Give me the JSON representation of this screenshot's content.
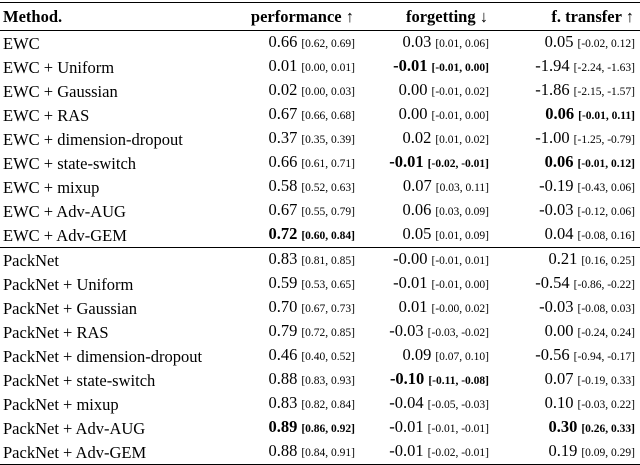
{
  "table": {
    "header": [
      "Method.",
      "performance ↑",
      "forgetting ↓",
      "f. transfer ↑"
    ],
    "groups": [
      [
        [
          "EWC",
          {
            "value": "0.66",
            "ci": "[0.62, 0.69]"
          },
          {
            "value": "0.03",
            "ci": "[0.01, 0.06]"
          },
          {
            "value": "0.05",
            "ci": "[-0.02, 0.12]"
          }
        ],
        [
          "EWC + Uniform",
          {
            "value": "0.01",
            "ci": "[0.00, 0.01]"
          },
          {
            "value": "-0.01",
            "ci": "[-0.01, 0.00]",
            "bold": true
          },
          {
            "value": "-1.94",
            "ci": "[-2.24, -1.63]"
          }
        ],
        [
          "EWC + Gaussian",
          {
            "value": "0.02",
            "ci": "[0.00, 0.03]"
          },
          {
            "value": "0.00",
            "ci": "[-0.01, 0.02]"
          },
          {
            "value": "-1.86",
            "ci": "[-2.15, -1.57]"
          }
        ],
        [
          "EWC + RAS",
          {
            "value": "0.67",
            "ci": "[0.66, 0.68]"
          },
          {
            "value": "0.00",
            "ci": "[-0.01, 0.00]"
          },
          {
            "value": "0.06",
            "ci": "[-0.01, 0.11]",
            "bold": true
          }
        ],
        [
          "EWC + dimension-dropout",
          {
            "value": "0.37",
            "ci": "[0.35, 0.39]"
          },
          {
            "value": "0.02",
            "ci": "[0.01, 0.02]"
          },
          {
            "value": "-1.00",
            "ci": "[-1.25, -0.79]"
          }
        ],
        [
          "EWC + state-switch",
          {
            "value": "0.66",
            "ci": "[0.61, 0.71]"
          },
          {
            "value": "-0.01",
            "ci": "[-0.02, -0.01]",
            "bold": true
          },
          {
            "value": "0.06",
            "ci": "[-0.01, 0.12]",
            "bold": true
          }
        ],
        [
          "EWC + mixup",
          {
            "value": "0.58",
            "ci": "[0.52, 0.63]"
          },
          {
            "value": "0.07",
            "ci": "[0.03, 0.11]"
          },
          {
            "value": "-0.19",
            "ci": "[-0.43, 0.06]"
          }
        ],
        [
          "EWC + Adv-AUG",
          {
            "value": "0.67",
            "ci": "[0.55, 0.79]"
          },
          {
            "value": "0.06",
            "ci": "[0.03, 0.09]"
          },
          {
            "value": "-0.03",
            "ci": "[-0.12, 0.06]"
          }
        ],
        [
          "EWC + Adv-GEM",
          {
            "value": "0.72",
            "ci": "[0.60, 0.84]",
            "bold": true
          },
          {
            "value": "0.05",
            "ci": "[0.01, 0.09]"
          },
          {
            "value": "0.04",
            "ci": "[-0.08, 0.16]"
          }
        ]
      ],
      [
        [
          "PackNet",
          {
            "value": "0.83",
            "ci": "[0.81, 0.85]"
          },
          {
            "value": "-0.00",
            "ci": "[-0.01, 0.01]"
          },
          {
            "value": "0.21",
            "ci": "[0.16, 0.25]"
          }
        ],
        [
          "PackNet + Uniform",
          {
            "value": "0.59",
            "ci": "[0.53, 0.65]"
          },
          {
            "value": "-0.01",
            "ci": "[-0.01, 0.00]"
          },
          {
            "value": "-0.54",
            "ci": "[-0.86, -0.22]"
          }
        ],
        [
          "PackNet + Gaussian",
          {
            "value": "0.70",
            "ci": "[0.67, 0.73]"
          },
          {
            "value": "0.01",
            "ci": "[-0.00, 0.02]"
          },
          {
            "value": "-0.03",
            "ci": "[-0.08, 0.03]"
          }
        ],
        [
          "PackNet + RAS",
          {
            "value": "0.79",
            "ci": "[0.72, 0.85]"
          },
          {
            "value": "-0.03",
            "ci": "[-0.03, -0.02]"
          },
          {
            "value": "0.00",
            "ci": "[-0.24, 0.24]"
          }
        ],
        [
          "PackNet + dimension-dropout",
          {
            "value": "0.46",
            "ci": "[0.40, 0.52]"
          },
          {
            "value": "0.09",
            "ci": "[0.07, 0.10]"
          },
          {
            "value": "-0.56",
            "ci": "[-0.94, -0.17]"
          }
        ],
        [
          "PackNet + state-switch",
          {
            "value": "0.88",
            "ci": "[0.83, 0.93]"
          },
          {
            "value": "-0.10",
            "ci": "[-0.11, -0.08]",
            "bold": true
          },
          {
            "value": "0.07",
            "ci": "[-0.19, 0.33]"
          }
        ],
        [
          "PackNet + mixup",
          {
            "value": "0.83",
            "ci": "[0.82, 0.84]"
          },
          {
            "value": "-0.04",
            "ci": "[-0.05, -0.03]"
          },
          {
            "value": "0.10",
            "ci": "[-0.03, 0.22]"
          }
        ],
        [
          "PackNet + Adv-AUG",
          {
            "value": "0.89",
            "ci": "[0.86, 0.92]",
            "bold": true
          },
          {
            "value": "-0.01",
            "ci": "[-0.01, -0.01]"
          },
          {
            "value": "0.30",
            "ci": "[0.26, 0.33]",
            "bold": true
          }
        ],
        [
          "PackNet + Adv-GEM",
          {
            "value": "0.88",
            "ci": "[0.84, 0.91]"
          },
          {
            "value": "-0.01",
            "ci": "[-0.02, -0.01]"
          },
          {
            "value": "0.19",
            "ci": "[0.09, 0.29]"
          }
        ]
      ]
    ]
  }
}
